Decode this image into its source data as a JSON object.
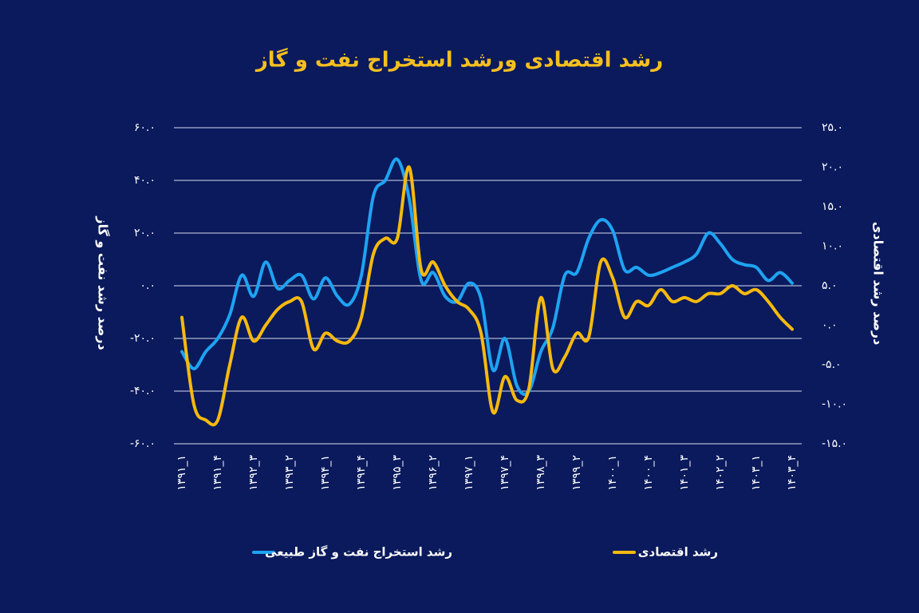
{
  "chart_data": {
    "type": "line",
    "title": "رشد اقتصادی ورشد استخراج نفت و گاز",
    "y_label": "درصد رشد نفت و گاز",
    "y2_label": "درصد رشد اقتصادی",
    "categories": [
      "۱۳۹۱_۱",
      null,
      null,
      "۱۳۹۱_۴",
      null,
      null,
      "۱۳۹۲_۳",
      null,
      null,
      "۱۳۹۳_۲",
      null,
      null,
      "۱۳۹۴_۱",
      null,
      null,
      "۱۳۹۴_۴",
      null,
      null,
      "۱۳۹۵_۳",
      null,
      null,
      "۱۳۹۶_۲",
      null,
      null,
      "۱۳۹۷_۱",
      null,
      null,
      "۱۳۹۷_۴",
      null,
      null,
      "۱۳۹۸_۳",
      null,
      null,
      "۱۳۹۹_۲",
      null,
      null,
      "۱۴۰۰_۱",
      null,
      null,
      "۱۴۰۰_۴",
      null,
      null,
      "۱۴۰۱_۳",
      null,
      null,
      "۱۴۰۲_۲",
      null,
      null,
      "۱۴۰۳_۱",
      null,
      null,
      "۱۴۰۳_۴"
    ],
    "series": [
      {
        "name": "رشد استخراج نفت و گاز طبیعی",
        "color": "#1ea3f2",
        "axis": "y",
        "values": [
          -25,
          -31.5,
          -25,
          -20,
          -11,
          4,
          -4,
          9,
          -1,
          2,
          4,
          -5,
          3,
          -4,
          -7,
          4,
          34,
          40,
          48,
          33,
          2,
          5,
          -4,
          -6,
          1,
          -5,
          -32,
          -20,
          -38,
          -40,
          -25,
          -16,
          4,
          5,
          18,
          25,
          21,
          6,
          7,
          4,
          5,
          7,
          9,
          12,
          20,
          16,
          10,
          8,
          7,
          2,
          5,
          1
        ]
      },
      {
        "name": "رشد اقتصادی",
        "color": "#f6b90f",
        "axis": "y2",
        "values": [
          1,
          -10,
          -12,
          -12,
          -5,
          1,
          -2,
          0,
          2,
          3,
          3,
          -3,
          -1,
          -2,
          -2,
          1,
          9,
          11,
          11,
          20,
          7,
          8,
          5,
          3,
          2,
          -1,
          -11,
          -6.5,
          -9.5,
          -8,
          3.5,
          -5.5,
          -4,
          -1,
          -1.5,
          8,
          6,
          1,
          3,
          2.5,
          4.5,
          3,
          3.5,
          3,
          4,
          4,
          5,
          4,
          4.5,
          3,
          1,
          -0.5
        ]
      }
    ],
    "ylim": [
      -60,
      60
    ],
    "yticks": [
      {
        "value": -60,
        "label": "-۶۰.۰"
      },
      {
        "value": -40,
        "label": "-۴۰.۰"
      },
      {
        "value": -20,
        "label": "-۲۰.۰"
      },
      {
        "value": 0,
        "label": "۰.۰"
      },
      {
        "value": 20,
        "label": "۲۰.۰"
      },
      {
        "value": 40,
        "label": "۴۰.۰"
      },
      {
        "value": 60,
        "label": "۶۰.۰"
      }
    ],
    "y2lim": [
      -15,
      25
    ],
    "y2ticks": [
      {
        "value": -15,
        "label": "-۱۵.۰"
      },
      {
        "value": -10,
        "label": "-۱۰.۰"
      },
      {
        "value": -5,
        "label": "-۵.۰"
      },
      {
        "value": 0,
        "label": "۰.۰"
      },
      {
        "value": 5,
        "label": "۵.۰"
      },
      {
        "value": 10,
        "label": "۱۰.۰"
      },
      {
        "value": 15,
        "label": "۱۵.۰"
      },
      {
        "value": 20,
        "label": "۲۰.۰"
      },
      {
        "value": 25,
        "label": "۲۵.۰"
      }
    ],
    "grid": true
  }
}
